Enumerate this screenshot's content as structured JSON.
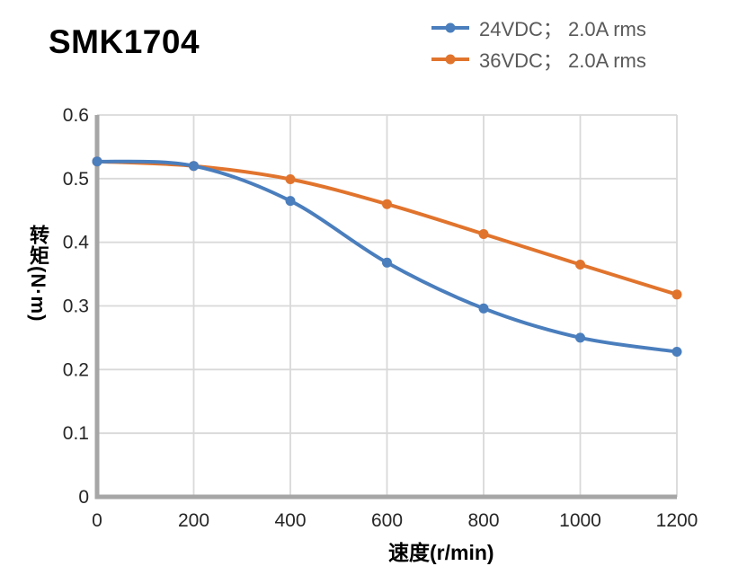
{
  "title": "SMK1704",
  "legend": {
    "items": [
      {
        "label": "24VDC； 2.0A rms",
        "color": "#4a7ebd"
      },
      {
        "label": "36VDC； 2.0A rms",
        "color": "#e1742d"
      }
    ]
  },
  "chart_data": {
    "type": "line",
    "title": "SMK1704",
    "xlabel": "速度(r/min)",
    "ylabel": "转矩(N·m)",
    "x": [
      0,
      200,
      400,
      600,
      800,
      1000,
      1200
    ],
    "series": [
      {
        "name": "24VDC； 2.0A rms",
        "color": "#4a7ebd",
        "values": [
          0.527,
          0.52,
          0.465,
          0.368,
          0.296,
          0.25,
          0.228
        ]
      },
      {
        "name": "36VDC； 2.0A rms",
        "color": "#e1742d",
        "values": [
          0.527,
          0.52,
          0.499,
          0.46,
          0.413,
          0.365,
          0.318
        ]
      }
    ],
    "xlim": [
      0,
      1200
    ],
    "ylim": [
      0,
      0.6
    ],
    "x_ticks": [
      0,
      200,
      400,
      600,
      800,
      1000,
      1200
    ],
    "x_tick_labels": [
      "0",
      "200",
      "400",
      "600",
      "800",
      "1000",
      "1200"
    ],
    "y_ticks": [
      0,
      0.1,
      0.2,
      0.3,
      0.4,
      0.5,
      0.6
    ],
    "y_tick_labels": [
      "0",
      "0.1",
      "0.2",
      "0.3",
      "0.4",
      "0.5",
      "0.6"
    ],
    "grid": true,
    "legend_position": "top-right",
    "marker": "circle"
  },
  "colors": {
    "grid": "#d9d9d9",
    "axis": "#a6a6a6",
    "tick_text": "#262626",
    "legend_text": "#595959"
  }
}
